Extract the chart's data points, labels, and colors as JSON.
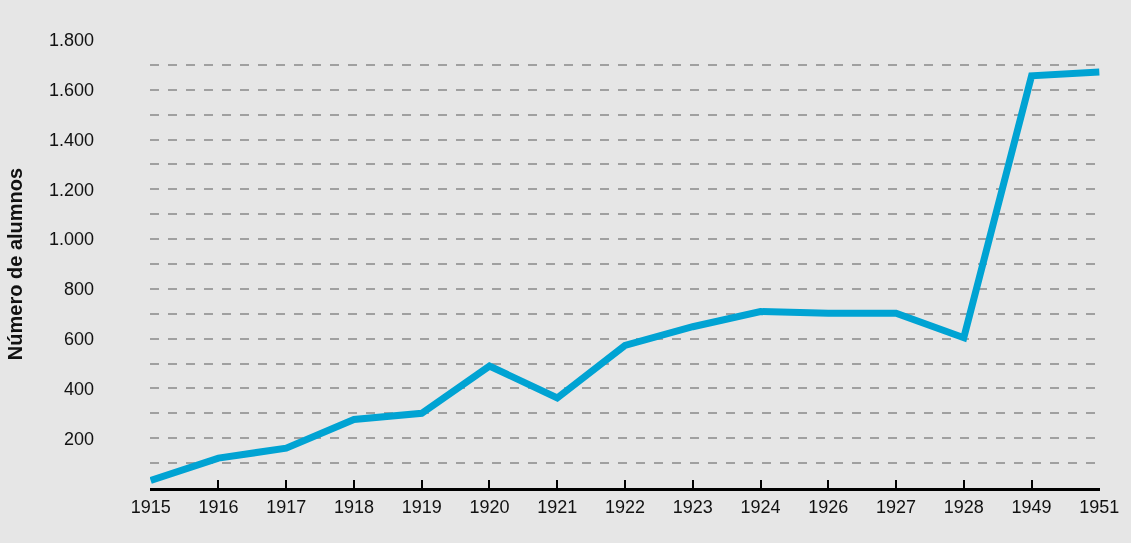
{
  "chart_data": {
    "type": "line",
    "ylabel": "Número de alumnos",
    "categories": [
      "1915",
      "1916",
      "1917",
      "1918",
      "1919",
      "1920",
      "1921",
      "1922",
      "1923",
      "1924",
      "1926",
      "1927",
      "1928",
      "1949",
      "1951"
    ],
    "series": [
      {
        "color": "#00a3d3",
        "values": [
          30,
          120,
          160,
          275,
          300,
          490,
          362,
          573,
          648,
          709,
          702,
          702,
          604,
          1656,
          1671
        ]
      }
    ],
    "ylim": [
      0,
      1800
    ],
    "yticks": [
      {
        "value": 100,
        "label": null
      },
      {
        "value": 200,
        "label": "200"
      },
      {
        "value": 300,
        "label": null
      },
      {
        "value": 400,
        "label": "400"
      },
      {
        "value": 500,
        "label": null
      },
      {
        "value": 600,
        "label": "600"
      },
      {
        "value": 700,
        "label": null
      },
      {
        "value": 800,
        "label": "800"
      },
      {
        "value": 900,
        "label": null
      },
      {
        "value": 1000,
        "label": "1.000"
      },
      {
        "value": 1100,
        "label": null
      },
      {
        "value": 1200,
        "label": "1.200"
      },
      {
        "value": 1300,
        "label": null
      },
      {
        "value": 1400,
        "label": "1.400"
      },
      {
        "value": 1500,
        "label": null
      },
      {
        "value": 1600,
        "label": "1.600"
      },
      {
        "value": 1700,
        "label": null
      },
      {
        "value": 1800,
        "label": "1.800"
      }
    ],
    "grid": "y",
    "line_style": "solid",
    "marker": "none"
  }
}
